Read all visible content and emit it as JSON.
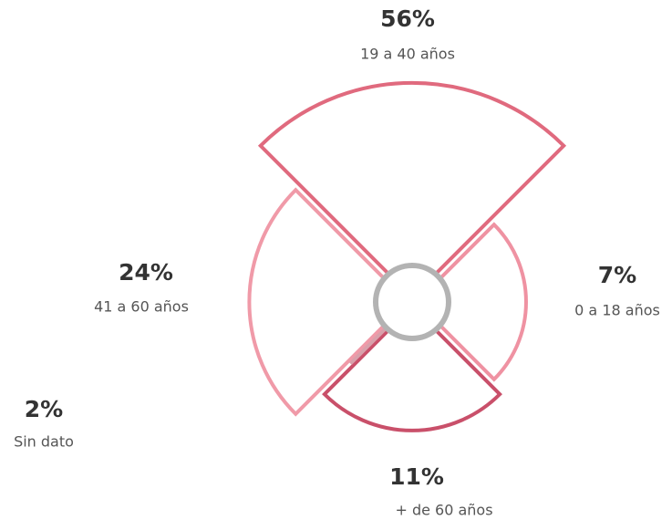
{
  "chart_data": {
    "type": "polar_area",
    "categories": [
      "19 a 40 años",
      "0 a 18 años",
      "+ de 60 años",
      "41 a 60 años",
      "Sin dato"
    ],
    "values": [
      56,
      7,
      11,
      24,
      2
    ],
    "value_labels": [
      "56%",
      "7%",
      "11%",
      "24%",
      "2%"
    ],
    "colors": [
      "#e06a7e",
      "#ef92a2",
      "#c9506a",
      "#f09aa8",
      "#d9a0ab"
    ]
  }
}
